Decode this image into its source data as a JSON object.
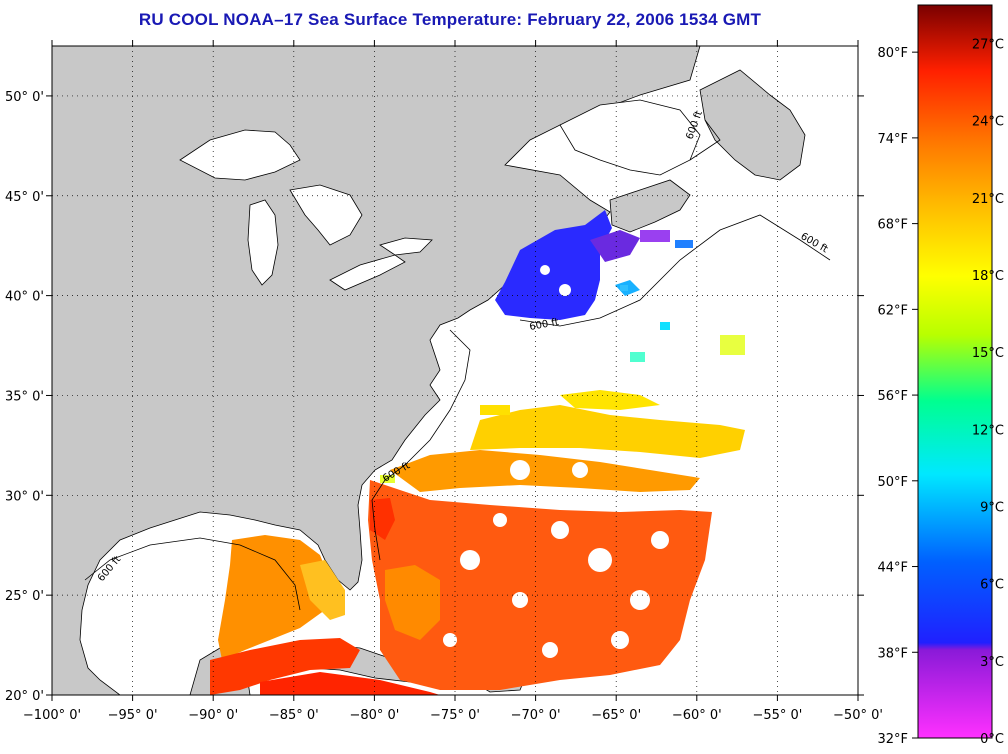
{
  "title": "RU COOL  NOAA–17  Sea Surface Temperature:  February 22, 2006 1534 GMT",
  "map": {
    "lon_range": [
      -100,
      -50
    ],
    "lat_range": [
      20,
      52.5
    ],
    "lon_ticks": [
      "−100° 0'",
      "−95° 0'",
      "−90° 0'",
      "−85° 0'",
      "−80° 0'",
      "−75° 0'",
      "−70° 0'",
      "−65° 0'",
      "−60° 0'",
      "−55° 0'",
      "−50° 0'"
    ],
    "lat_ticks": [
      "20° 0'",
      "25° 0'",
      "30° 0'",
      "35° 0'",
      "40° 0'",
      "45° 0'",
      "50° 0'"
    ],
    "isobath_label": "600 ft",
    "grid": "dotted",
    "land_color": "#c8c8c8",
    "cloud_color": "#ffffff"
  },
  "colorbar": {
    "fahrenheit": [
      "80°F",
      "74°F",
      "68°F",
      "62°F",
      "56°F",
      "50°F",
      "44°F",
      "38°F",
      "32°F"
    ],
    "celsius": [
      "27°C",
      "24°C",
      "21°C",
      "18°C",
      "15°C",
      "12°C",
      "9°C",
      "6°C",
      "3°C",
      "0°C"
    ],
    "range_c": [
      0,
      28.5
    ],
    "colors": [
      "#ff30ff",
      "#8a1ad8",
      "#2020ff",
      "#0080ff",
      "#00e8ff",
      "#00ff90",
      "#b8ff00",
      "#ffff00",
      "#ffc000",
      "#ff7a00",
      "#ff2000",
      "#c40000",
      "#7a0000"
    ]
  }
}
